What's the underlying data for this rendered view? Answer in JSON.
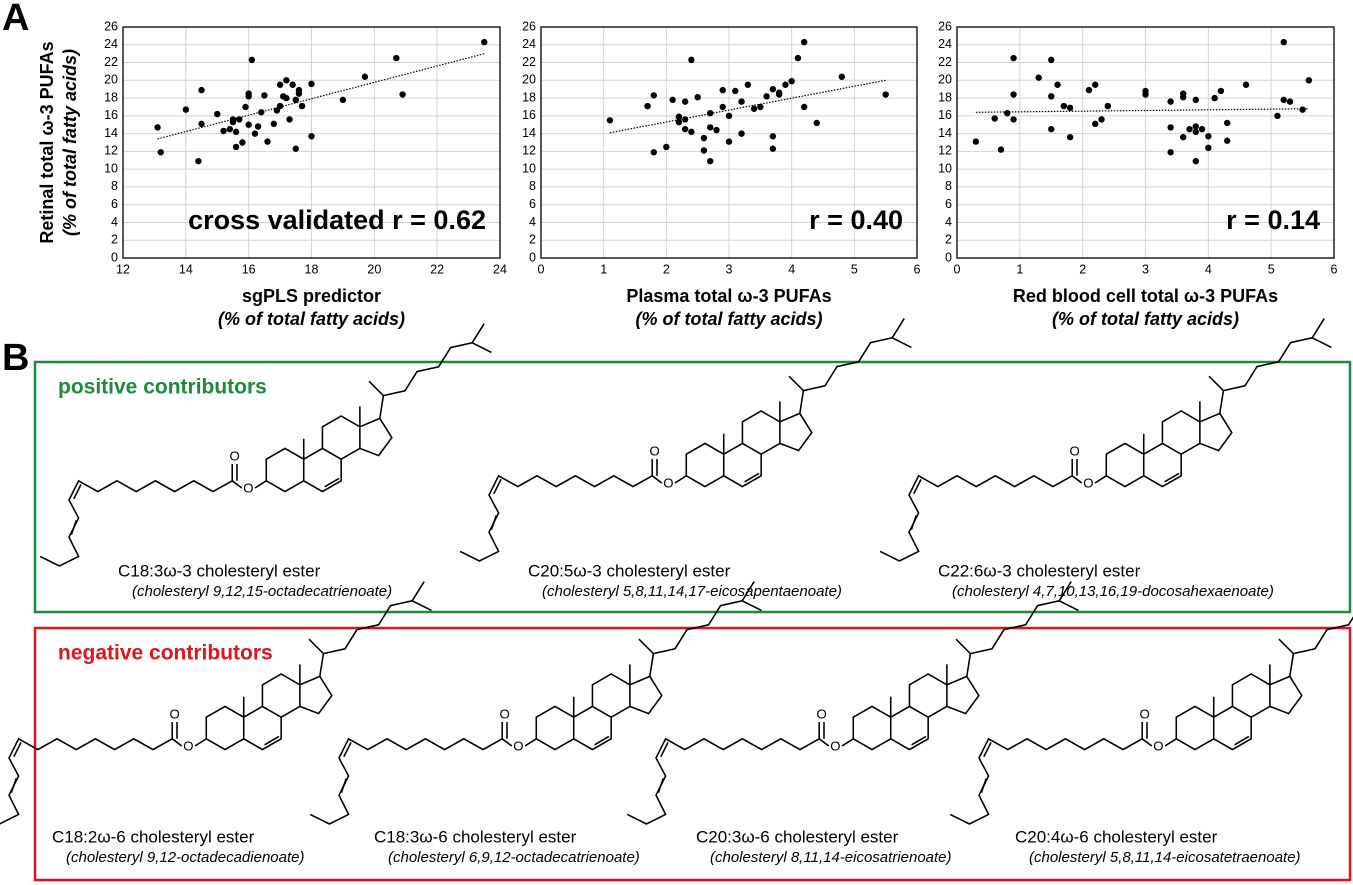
{
  "panel_labels": [
    "A",
    "B"
  ],
  "chart_data": [
    {
      "type": "scatter",
      "ylabel": "Retinal total ω-3 PUFAs",
      "ylabel_sub": "(% of total fatty acids)",
      "xlabel": "sgPLS predictor",
      "xlabel_sub": "(% of total fatty acids)",
      "annotation": "cross validated r = 0.62",
      "color": "#000000",
      "grid": true,
      "xlim": [
        12,
        24
      ],
      "xticks": [
        12,
        14,
        16,
        18,
        20,
        22,
        24
      ],
      "ylim": [
        0,
        26
      ],
      "yticks": [
        0,
        2,
        4,
        6,
        8,
        10,
        12,
        14,
        16,
        18,
        20,
        22,
        24,
        26
      ],
      "x": [
        13.1,
        13.2,
        14.0,
        14.4,
        14.5,
        14.5,
        15.0,
        15.2,
        15.4,
        15.5,
        15.5,
        15.6,
        15.7,
        15.6,
        15.8,
        15.9,
        16.0,
        16.0,
        16.1,
        16.0,
        16.2,
        16.3,
        16.4,
        16.5,
        16.6,
        16.8,
        16.9,
        17.0,
        17.0,
        17.1,
        17.2,
        17.2,
        17.3,
        17.4,
        17.5,
        17.5,
        17.6,
        17.6,
        17.7,
        18.0,
        18.0,
        19.0,
        19.7,
        20.7,
        20.9,
        23.5
      ],
      "values": [
        14.7,
        11.9,
        16.7,
        10.9,
        18.9,
        15.1,
        16.2,
        14.3,
        14.5,
        15.6,
        15.3,
        12.5,
        15.6,
        14.2,
        13.0,
        17.0,
        18.2,
        18.5,
        22.3,
        15.0,
        14.0,
        14.8,
        16.4,
        18.3,
        13.1,
        15.1,
        16.6,
        17.1,
        19.5,
        18.2,
        18.0,
        20.0,
        15.6,
        19.5,
        12.3,
        17.8,
        18.9,
        18.5,
        17.1,
        13.7,
        19.6,
        17.8,
        20.4,
        22.5,
        18.4,
        24.3
      ],
      "trend": {
        "x": [
          13.1,
          23.5
        ],
        "y": [
          13.4,
          23.0
        ]
      }
    },
    {
      "type": "scatter",
      "xlabel": "Plasma total ω-3 PUFAs",
      "xlabel_sub": "(% of total fatty acids)",
      "annotation": "r = 0.40",
      "color": "#000000",
      "grid": true,
      "xlim": [
        0,
        6
      ],
      "xticks": [
        0,
        1,
        2,
        3,
        4,
        5,
        6
      ],
      "ylim": [
        0,
        26
      ],
      "yticks": [
        0,
        2,
        4,
        6,
        8,
        10,
        12,
        14,
        16,
        18,
        20,
        22,
        24,
        26
      ],
      "x": [
        1.1,
        1.7,
        1.8,
        1.8,
        2.0,
        2.1,
        2.2,
        2.2,
        2.3,
        2.3,
        2.3,
        2.4,
        2.4,
        2.5,
        2.6,
        2.6,
        2.7,
        2.7,
        2.7,
        2.8,
        2.9,
        2.9,
        3.0,
        3.0,
        3.1,
        3.2,
        3.2,
        3.3,
        3.4,
        3.5,
        3.6,
        3.7,
        3.7,
        3.7,
        3.8,
        3.8,
        3.9,
        4.0,
        4.1,
        4.2,
        4.2,
        4.4,
        4.8,
        5.5
      ],
      "values": [
        15.5,
        17.1,
        11.9,
        18.3,
        12.5,
        17.8,
        15.9,
        15.3,
        14.5,
        15.6,
        17.6,
        14.2,
        22.3,
        18.1,
        13.5,
        12.1,
        10.9,
        16.3,
        14.7,
        14.4,
        17.0,
        18.9,
        13.1,
        16.0,
        18.8,
        14.0,
        17.6,
        19.5,
        16.8,
        17.0,
        18.2,
        13.7,
        12.3,
        19.0,
        18.6,
        18.4,
        19.5,
        19.9,
        22.5,
        24.3,
        17.0,
        15.2,
        20.4,
        18.4
      ],
      "trend": {
        "x": [
          1.1,
          5.5
        ],
        "y": [
          14.1,
          20.0
        ]
      }
    },
    {
      "type": "scatter",
      "xlabel": "Red blood cell total ω-3 PUFAs",
      "xlabel_sub": "(% of total fatty acids)",
      "annotation": "r = 0.14",
      "color": "#000000",
      "grid": true,
      "xlim": [
        0,
        6
      ],
      "xticks": [
        0,
        1,
        2,
        3,
        4,
        5,
        6
      ],
      "ylim": [
        0,
        26
      ],
      "yticks": [
        0,
        2,
        4,
        6,
        8,
        10,
        12,
        14,
        16,
        18,
        20,
        22,
        24,
        26
      ],
      "x": [
        0.3,
        0.6,
        0.7,
        0.8,
        0.9,
        0.9,
        0.9,
        1.3,
        1.5,
        1.5,
        1.5,
        1.6,
        1.7,
        1.8,
        1.8,
        2.1,
        2.2,
        2.3,
        2.2,
        2.4,
        3.0,
        3.0,
        3.4,
        3.4,
        3.4,
        3.6,
        3.6,
        3.6,
        3.7,
        3.8,
        3.8,
        3.8,
        3.8,
        3.9,
        4.0,
        4.0,
        4.1,
        4.2,
        4.3,
        4.3,
        4.6,
        5.1,
        5.2,
        5.2,
        5.3,
        5.5,
        5.6
      ],
      "values": [
        13.1,
        15.7,
        12.2,
        16.3,
        15.6,
        18.4,
        22.5,
        20.3,
        22.3,
        18.2,
        14.5,
        19.5,
        17.1,
        16.9,
        13.6,
        18.9,
        15.1,
        15.6,
        19.5,
        17.1,
        18.8,
        18.4,
        14.7,
        11.9,
        17.6,
        18.5,
        13.6,
        18.1,
        14.5,
        14.2,
        14.8,
        10.9,
        17.8,
        14.5,
        13.7,
        12.4,
        18.0,
        18.8,
        15.2,
        13.2,
        19.5,
        16.0,
        24.3,
        17.8,
        17.6,
        16.7,
        20.0
      ],
      "trend": {
        "x": [
          0.3,
          5.6
        ],
        "y": [
          16.4,
          16.8
        ]
      }
    }
  ],
  "structures": {
    "atom": "O",
    "groups": [
      {
        "title": "positive contributors",
        "color": "#1e8a3c",
        "items": [
          {
            "name": "C18:3ω-3 cholesteryl ester",
            "systematic": "(cholesteryl 9,12,15-octadecatrienoate)"
          },
          {
            "name": "C20:5ω-3 cholesteryl ester",
            "systematic": "(cholesteryl 5,8,11,14,17-eicosapentaenoate)"
          },
          {
            "name": "C22:6ω-3 cholesteryl ester",
            "systematic": "(cholesteryl 4,7,10,13,16,19-docosahexaenoate)"
          }
        ]
      },
      {
        "title": "negative contributors",
        "color": "#e0141e",
        "items": [
          {
            "name": "C18:2ω-6 cholesteryl ester",
            "systematic": "(cholesteryl 9,12-octadecadienoate)"
          },
          {
            "name": "C18:3ω-6 cholesteryl ester",
            "systematic": "(cholesteryl 6,9,12-octadecatrienoate)"
          },
          {
            "name": "C20:3ω-6 cholesteryl ester",
            "systematic": "(cholesteryl 8,11,14-eicosatrienoate)"
          },
          {
            "name": "C20:4ω-6 cholesteryl ester",
            "systematic": "(cholesteryl 5,8,11,14-eicosatetraenoate)"
          }
        ]
      }
    ]
  }
}
